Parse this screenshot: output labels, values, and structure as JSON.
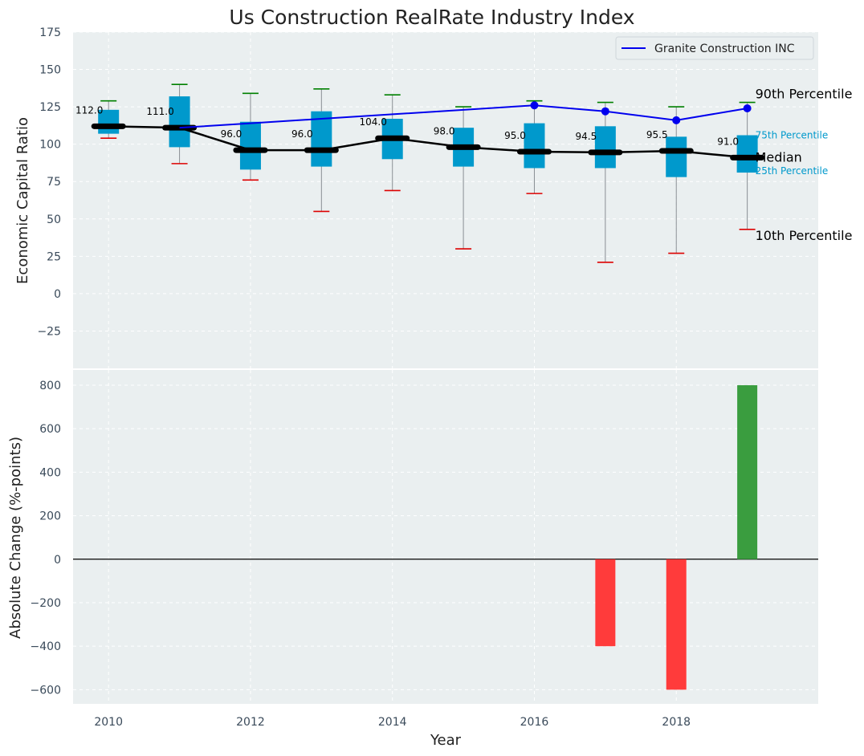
{
  "chart_data": [
    {
      "type": "box",
      "title": "Us Construction RealRate Industry Index",
      "ylabel": "Economic Capital Ratio",
      "xlabel": "",
      "ylim": [
        -50,
        175
      ],
      "xlim": [
        2009.5,
        2020
      ],
      "yticks": [
        -25,
        0,
        25,
        50,
        75,
        100,
        125,
        150,
        175
      ],
      "ytick_labels": [
        "−25",
        "0",
        "25",
        "50",
        "75",
        "100",
        "125",
        "150",
        "175"
      ],
      "grid": true,
      "legend": {
        "position": "top-right",
        "entries": [
          "Granite Construction INC"
        ]
      },
      "years": [
        2010,
        2011,
        2012,
        2013,
        2014,
        2015,
        2016,
        2017,
        2018,
        2019
      ],
      "boxes": [
        {
          "year": 2010,
          "p10": 104,
          "p25": 107,
          "median": 112,
          "p75": 123,
          "p90": 129,
          "label": "112.0"
        },
        {
          "year": 2011,
          "p10": 87,
          "p25": 98,
          "median": 111,
          "p75": 132,
          "p90": 140,
          "label": "111.0"
        },
        {
          "year": 2012,
          "p10": 76,
          "p25": 83,
          "median": 96,
          "p75": 115,
          "p90": 134,
          "label": "96.0"
        },
        {
          "year": 2013,
          "p10": 55,
          "p25": 85,
          "median": 96,
          "p75": 122,
          "p90": 137,
          "label": "96.0"
        },
        {
          "year": 2014,
          "p10": 69,
          "p25": 90,
          "median": 104,
          "p75": 117,
          "p90": 133,
          "label": "104.0"
        },
        {
          "year": 2015,
          "p10": 30,
          "p25": 85,
          "median": 98,
          "p75": 111,
          "p90": 125,
          "label": "98.0"
        },
        {
          "year": 2016,
          "p10": 67,
          "p25": 84,
          "median": 95,
          "p75": 114,
          "p90": 129,
          "label": "95.0"
        },
        {
          "year": 2017,
          "p10": 21,
          "p25": 84,
          "median": 94.5,
          "p75": 112,
          "p90": 128,
          "label": "94.5"
        },
        {
          "year": 2018,
          "p10": 27,
          "p25": 78,
          "median": 95.5,
          "p75": 105,
          "p90": 125,
          "label": "95.5"
        },
        {
          "year": 2019,
          "p10": 43,
          "p25": 81,
          "median": 91,
          "p75": 106,
          "p90": 128,
          "label": "91.0"
        }
      ],
      "series": [
        {
          "name": "Granite Construction INC",
          "color": "#0000ee",
          "x": [
            2010,
            2011,
            2012,
            2013,
            2014,
            2015,
            2016,
            2017,
            2018,
            2019
          ],
          "y": [
            112,
            111,
            114,
            117,
            120,
            123,
            126,
            122,
            116,
            124
          ],
          "markers": [
            2016,
            2017,
            2018,
            2019
          ]
        }
      ],
      "annotations": {
        "p90": "90th Percentile",
        "p75": "75th Percentile",
        "median": "Median",
        "p25": "25th Percentile",
        "p10": "10th Percentile"
      },
      "colors": {
        "box": "#0099cc",
        "median": "#000000",
        "whisker_high": "#008000",
        "whisker_low": "#dd0000"
      }
    },
    {
      "type": "bar",
      "ylabel": "Absolute Change (%-points)",
      "xlabel": "Year",
      "ylim": [
        -665,
        870
      ],
      "yticks": [
        -600,
        -400,
        -200,
        0,
        200,
        400,
        600,
        800
      ],
      "ytick_labels": [
        "−600",
        "−400",
        "−200",
        "0",
        "200",
        "400",
        "600",
        "800"
      ],
      "xticks": [
        2010,
        2012,
        2014,
        2016,
        2018
      ],
      "xtick_labels": [
        "2010",
        "2012",
        "2014",
        "2016",
        "2018"
      ],
      "grid": true,
      "categories": [
        2017,
        2018,
        2019
      ],
      "values": [
        -400,
        -600,
        800
      ],
      "colors": {
        "positive": "#3a9d3f",
        "negative": "#ff3b3b"
      }
    }
  ]
}
